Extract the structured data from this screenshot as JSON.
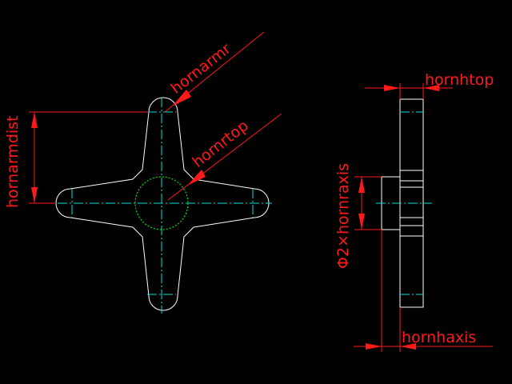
{
  "labels": {
    "hornarmr": "hornarmr",
    "hornrtop": "hornrtop",
    "hornarmdist": "hornarmdist",
    "hornhtop": "hornhtop",
    "hornraxis": "Φ2×hornraxis",
    "hornhaxis": "hornhaxis"
  },
  "colors": {
    "background": "#000000",
    "dimension": "#ff1a1a",
    "outline": "#ffffff",
    "centerline": "#00e0e0",
    "hidden_circle": "#00e000"
  }
}
